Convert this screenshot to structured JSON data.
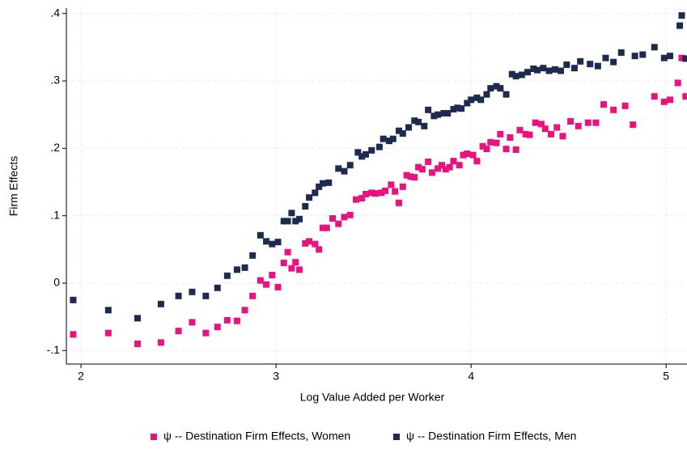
{
  "chart_data": {
    "type": "scatter",
    "x_label": "Log Value Added per Worker",
    "y_label": "Firm Effects",
    "xlim": [
      1.925,
      5.107
    ],
    "ylim": [
      -0.12,
      0.408
    ],
    "xticks": [
      2,
      3,
      4,
      5
    ],
    "yticks": [
      {
        "value": -0.1,
        "label": "-.1"
      },
      0,
      {
        "value": 0.1,
        "label": ".1"
      },
      {
        "value": 0.2,
        "label": ".2"
      },
      {
        "value": 0.3,
        "label": ".3"
      },
      {
        "value": 0.4,
        "label": ".4"
      }
    ],
    "grid": true,
    "legend": "bottom",
    "series": [
      {
        "name": "ψ -- Destination Firm Effects, Women",
        "color": "#e8137e",
        "x": [
          1.96,
          2.14,
          2.29,
          2.41,
          2.5,
          2.57,
          2.64,
          2.7,
          2.75,
          2.8,
          2.84,
          2.88,
          2.92,
          2.95,
          2.98,
          3.01,
          3.04,
          3.06,
          3.08,
          3.1,
          3.12,
          3.15,
          3.17,
          3.2,
          3.22,
          3.24,
          3.26,
          3.29,
          3.32,
          3.35,
          3.38,
          3.41,
          3.44,
          3.46,
          3.49,
          3.51,
          3.54,
          3.56,
          3.59,
          3.61,
          3.63,
          3.65,
          3.67,
          3.69,
          3.71,
          3.73,
          3.75,
          3.78,
          3.8,
          3.83,
          3.85,
          3.87,
          3.89,
          3.91,
          3.94,
          3.96,
          3.98,
          4.01,
          4.03,
          4.06,
          4.08,
          4.1,
          4.13,
          4.15,
          4.18,
          4.2,
          4.23,
          4.25,
          4.28,
          4.3,
          4.33,
          4.36,
          4.38,
          4.41,
          4.44,
          4.47,
          4.51,
          4.55,
          4.6,
          4.64,
          4.68,
          4.73,
          4.79,
          4.83,
          4.94,
          4.99,
          5.02,
          5.06,
          5.08,
          5.1
        ],
        "values": [
          -0.076,
          -0.074,
          -0.09,
          -0.088,
          -0.071,
          -0.058,
          -0.074,
          -0.065,
          -0.055,
          -0.056,
          -0.04,
          -0.019,
          0.004,
          -0.002,
          0.012,
          -0.006,
          0.03,
          0.046,
          0.022,
          0.031,
          0.02,
          0.059,
          0.062,
          0.058,
          0.05,
          0.082,
          0.082,
          0.096,
          0.088,
          0.098,
          0.101,
          0.124,
          0.126,
          0.132,
          0.134,
          0.133,
          0.134,
          0.137,
          0.146,
          0.136,
          0.119,
          0.143,
          0.16,
          0.158,
          0.157,
          0.172,
          0.169,
          0.18,
          0.164,
          0.17,
          0.175,
          0.169,
          0.172,
          0.181,
          0.175,
          0.19,
          0.192,
          0.19,
          0.181,
          0.203,
          0.199,
          0.209,
          0.208,
          0.221,
          0.199,
          0.216,
          0.198,
          0.227,
          0.221,
          0.22,
          0.238,
          0.236,
          0.229,
          0.221,
          0.231,
          0.218,
          0.24,
          0.233,
          0.238,
          0.238,
          0.265,
          0.257,
          0.263,
          0.235,
          0.277,
          0.269,
          0.272,
          0.297,
          0.334,
          0.277
        ]
      },
      {
        "name": "ψ -- Destination Firm Effects, Men",
        "color": "#1c2b4f",
        "x": [
          1.96,
          2.14,
          2.29,
          2.41,
          2.5,
          2.57,
          2.64,
          2.7,
          2.75,
          2.8,
          2.84,
          2.88,
          2.92,
          2.95,
          2.98,
          3.01,
          3.04,
          3.06,
          3.08,
          3.1,
          3.12,
          3.15,
          3.17,
          3.2,
          3.22,
          3.24,
          3.27,
          3.32,
          3.35,
          3.38,
          3.42,
          3.44,
          3.46,
          3.49,
          3.53,
          3.55,
          3.58,
          3.6,
          3.63,
          3.65,
          3.68,
          3.71,
          3.73,
          3.76,
          3.78,
          3.81,
          3.83,
          3.86,
          3.88,
          3.91,
          3.93,
          3.95,
          3.98,
          4.0,
          4.03,
          4.05,
          4.08,
          4.1,
          4.13,
          4.15,
          4.18,
          4.21,
          4.23,
          4.26,
          4.29,
          4.32,
          4.34,
          4.37,
          4.4,
          4.43,
          4.46,
          4.49,
          4.53,
          4.56,
          4.61,
          4.65,
          4.69,
          4.73,
          4.77,
          4.84,
          4.88,
          4.94,
          4.99,
          5.02,
          5.07,
          5.08,
          5.1
        ],
        "values": [
          -0.025,
          -0.04,
          -0.052,
          -0.031,
          -0.019,
          -0.013,
          -0.019,
          -0.007,
          0.011,
          0.02,
          0.023,
          0.041,
          0.071,
          0.062,
          0.058,
          0.061,
          0.092,
          0.092,
          0.104,
          0.092,
          0.095,
          0.114,
          0.127,
          0.134,
          0.143,
          0.148,
          0.149,
          0.17,
          0.166,
          0.175,
          0.194,
          0.188,
          0.191,
          0.197,
          0.202,
          0.214,
          0.211,
          0.214,
          0.226,
          0.222,
          0.231,
          0.241,
          0.239,
          0.233,
          0.257,
          0.248,
          0.25,
          0.252,
          0.252,
          0.258,
          0.26,
          0.259,
          0.267,
          0.272,
          0.275,
          0.272,
          0.28,
          0.289,
          0.292,
          0.289,
          0.28,
          0.31,
          0.307,
          0.309,
          0.313,
          0.318,
          0.316,
          0.319,
          0.315,
          0.317,
          0.315,
          0.324,
          0.319,
          0.329,
          0.325,
          0.322,
          0.334,
          0.328,
          0.342,
          0.337,
          0.339,
          0.35,
          0.334,
          0.337,
          0.382,
          0.397,
          0.333
        ]
      }
    ]
  }
}
